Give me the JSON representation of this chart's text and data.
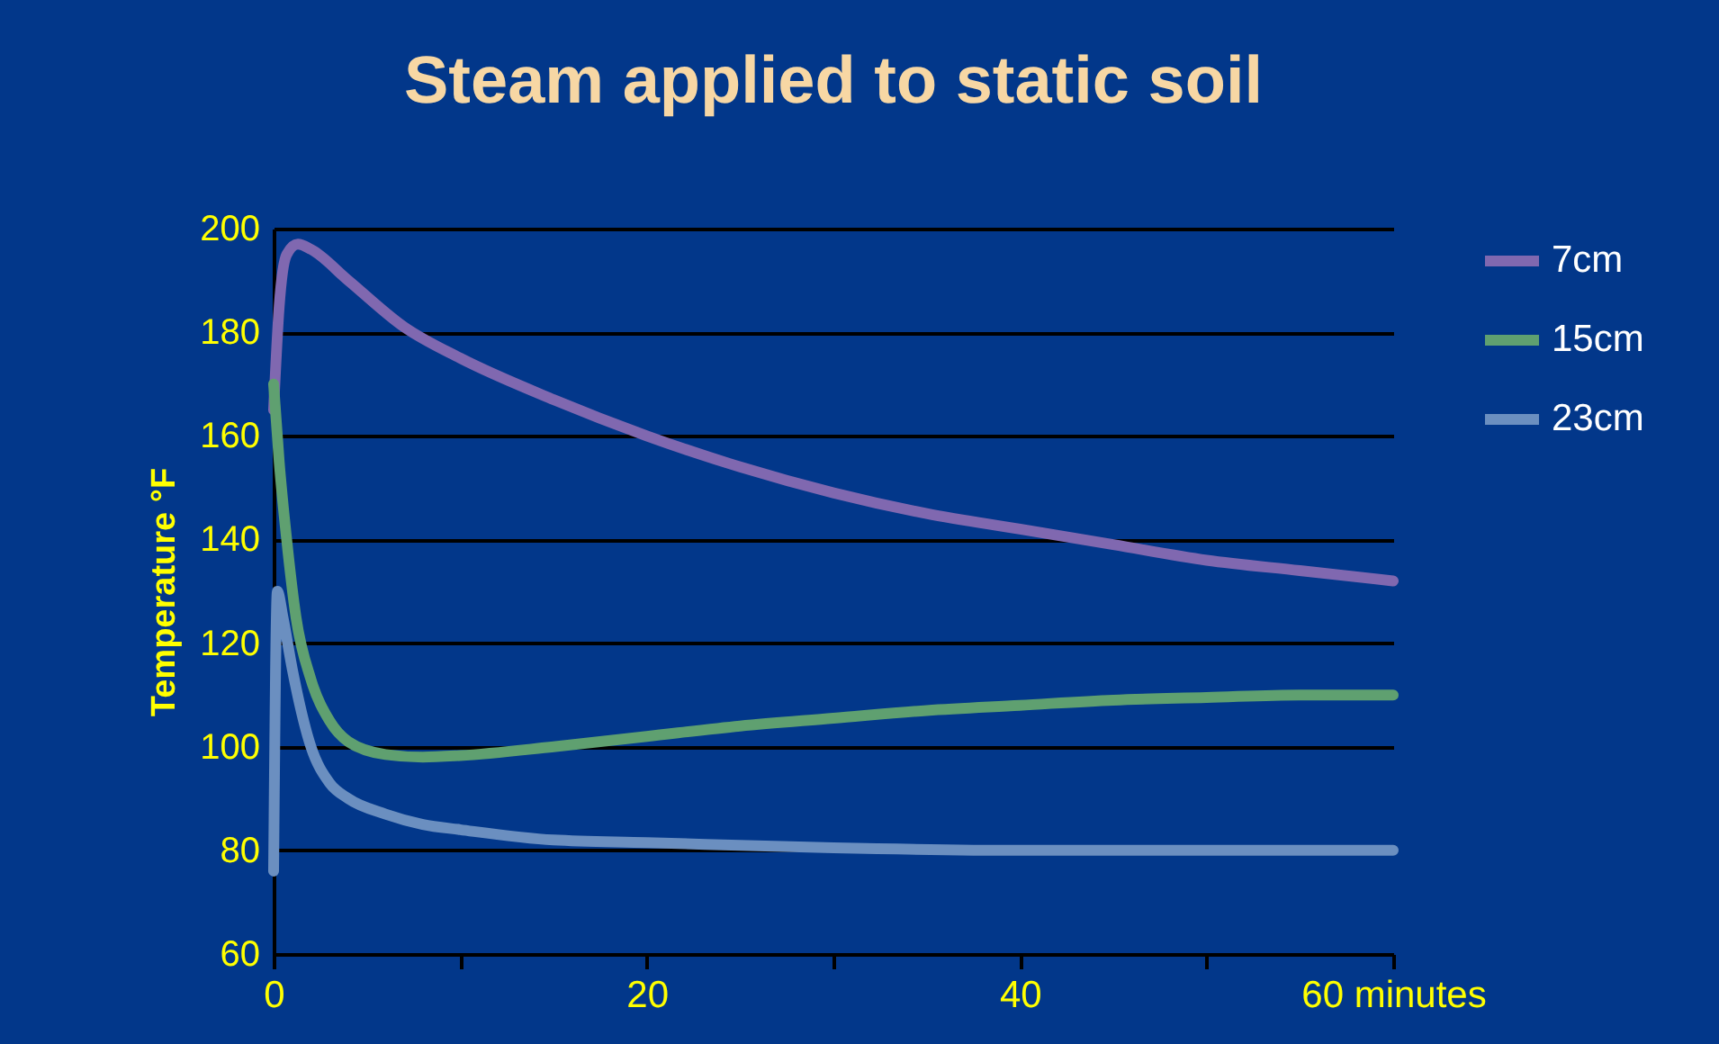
{
  "chart_data": {
    "type": "line",
    "title": "Steam applied to static soil",
    "ylabel": "Temperature °F",
    "xlim": [
      0,
      60
    ],
    "xticks": [
      0,
      {
        "value": 10,
        "label": null
      },
      20,
      {
        "value": 30,
        "label": null
      },
      40,
      {
        "value": 50,
        "label": null
      },
      {
        "value": 60,
        "label": "60 minutes"
      }
    ],
    "ylim": [
      60,
      200
    ],
    "yticks": [
      60,
      80,
      100,
      120,
      140,
      160,
      180,
      200
    ],
    "grid": "y",
    "legend": "right",
    "marker": "none",
    "line_style": "solid",
    "series": [
      {
        "name": "7cm",
        "color": "#8068b0",
        "x": [
          0,
          0.3,
          0.7,
          1.3,
          2,
          4,
          7,
          10,
          15,
          20,
          25,
          30,
          35,
          40,
          45,
          50,
          55,
          60
        ],
        "values": [
          165,
          185,
          195,
          197,
          196,
          190,
          181,
          175,
          167,
          160,
          154,
          149,
          145,
          142,
          139,
          136,
          134,
          132
        ]
      },
      {
        "name": "15cm",
        "color": "#5fa070",
        "x": [
          0,
          0.3,
          0.7,
          1.2,
          2,
          3,
          4,
          6,
          8,
          10,
          15,
          20,
          25,
          30,
          35,
          40,
          45,
          50,
          55,
          60
        ],
        "values": [
          170,
          155,
          140,
          125,
          113,
          105,
          101,
          98.5,
          98,
          98.3,
          100,
          102,
          104,
          105.5,
          107,
          108,
          109,
          109.5,
          110,
          110
        ]
      },
      {
        "name": "23cm",
        "color": "#6b8fc0",
        "x": [
          0,
          0.2,
          0.5,
          1,
          2,
          3,
          4,
          6,
          8,
          10,
          15,
          20,
          30,
          40,
          50,
          60
        ],
        "values": [
          76,
          130,
          125,
          115,
          100,
          93,
          90,
          87,
          85,
          84,
          82,
          81.5,
          80.5,
          80,
          80,
          80
        ]
      }
    ]
  }
}
